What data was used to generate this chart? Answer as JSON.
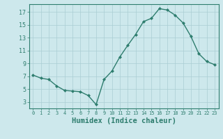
{
  "x": [
    0,
    1,
    2,
    3,
    4,
    5,
    6,
    7,
    8,
    9,
    10,
    11,
    12,
    13,
    14,
    15,
    16,
    17,
    18,
    19,
    20,
    21,
    22,
    23
  ],
  "y": [
    7.2,
    6.7,
    6.5,
    5.5,
    4.8,
    4.7,
    4.6,
    4.0,
    2.6,
    6.5,
    7.8,
    10.0,
    11.8,
    13.5,
    15.5,
    16.0,
    17.5,
    17.3,
    16.5,
    15.3,
    13.2,
    10.5,
    9.3,
    8.8
  ],
  "line_color": "#2e7d6e",
  "marker": "D",
  "marker_size": 2.0,
  "bg_color": "#cde8ec",
  "grid_color": "#aacdd3",
  "xlabel": "Humidex (Indice chaleur)",
  "xlim": [
    -0.5,
    23.5
  ],
  "ylim": [
    2,
    18.2
  ],
  "yticks": [
    3,
    5,
    7,
    9,
    11,
    13,
    15,
    17
  ],
  "xticks": [
    0,
    1,
    2,
    3,
    4,
    5,
    6,
    7,
    8,
    9,
    10,
    11,
    12,
    13,
    14,
    15,
    16,
    17,
    18,
    19,
    20,
    21,
    22,
    23
  ],
  "tick_color": "#2e7d6e",
  "label_color": "#2e7d6e",
  "spine_color": "#2e7d6e",
  "xlabel_fontsize": 7.5,
  "xlabel_fontweight": "bold",
  "tick_fontsize_x": 5.0,
  "tick_fontsize_y": 6.0,
  "linewidth": 1.0
}
